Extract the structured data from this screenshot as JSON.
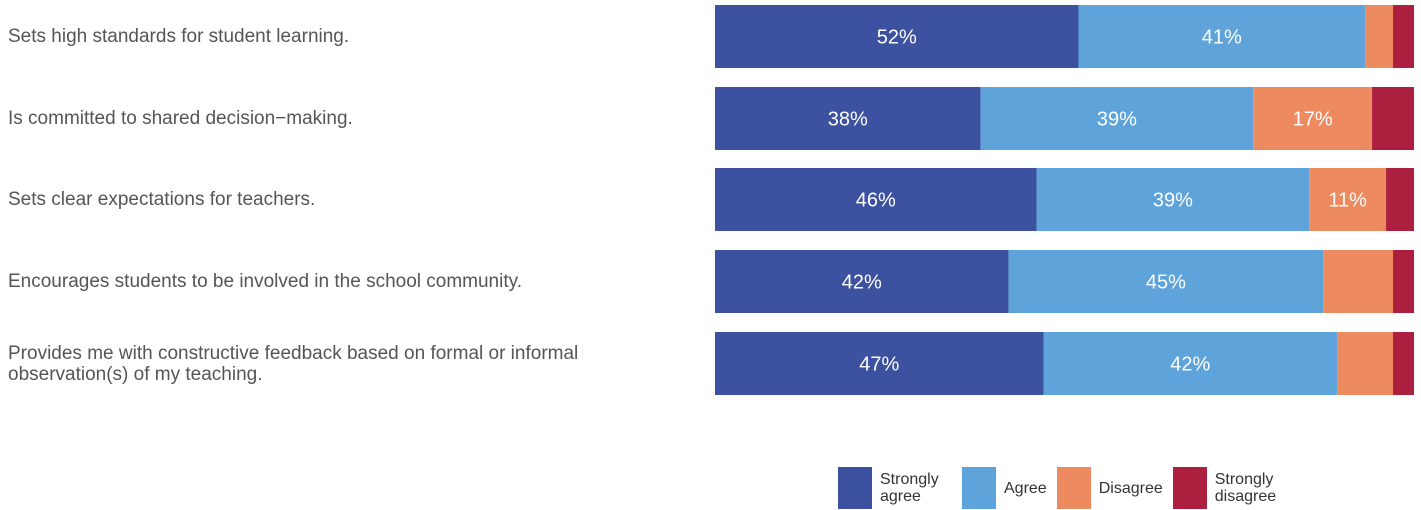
{
  "chart_data": {
    "type": "bar",
    "orientation": "horizontal",
    "stacked": true,
    "categories": [
      "Sets high standards for student learning.",
      "Is committed to shared decision−making.",
      "Sets clear expectations for teachers.",
      "Encourages students to be involved in the school community.",
      "Provides me with constructive feedback based on formal or informal observation(s) of my teaching."
    ],
    "series": [
      {
        "name": "Strongly agree",
        "color": "#3c52a1",
        "values": [
          52,
          38,
          46,
          42,
          47
        ],
        "labels": [
          "52%",
          "38%",
          "46%",
          "42%",
          "47%"
        ]
      },
      {
        "name": "Agree",
        "color": "#5ea4da",
        "values": [
          41,
          39,
          39,
          45,
          42
        ],
        "labels": [
          "41%",
          "39%",
          "39%",
          "45%",
          "42%"
        ]
      },
      {
        "name": "Disagree",
        "color": "#ee8a60",
        "values": [
          4,
          17,
          11,
          10,
          8
        ],
        "labels": [
          "",
          "17%",
          "11%",
          "",
          ""
        ]
      },
      {
        "name": "Strongly disagree",
        "color": "#ad1f3f",
        "values": [
          3,
          6,
          4,
          3,
          3
        ],
        "labels": [
          "",
          "",
          "",
          "",
          ""
        ]
      }
    ],
    "xlim": [
      0,
      100
    ],
    "grid": false,
    "legend_position": "bottom-right",
    "legend": [
      {
        "label": "Strongly agree",
        "lines": [
          "Strongly",
          "agree"
        ],
        "color": "#3c52a1"
      },
      {
        "label": "Agree",
        "lines": [
          "Agree"
        ],
        "color": "#5ea4da"
      },
      {
        "label": "Disagree",
        "lines": [
          "Disagree"
        ],
        "color": "#ee8a60"
      },
      {
        "label": "Strongly disagree",
        "lines": [
          "Strongly",
          "disagree"
        ],
        "color": "#ad1f3f"
      }
    ]
  }
}
